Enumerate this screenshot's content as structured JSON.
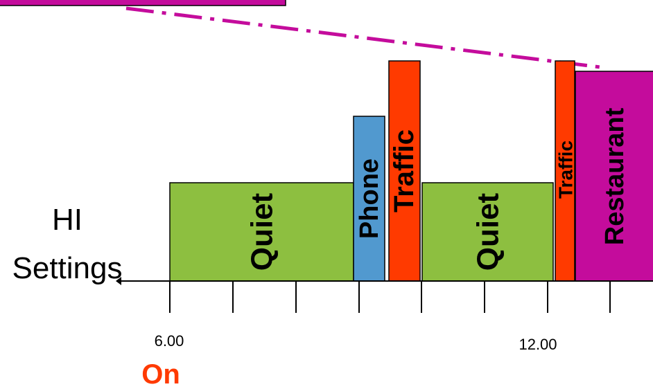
{
  "colors": {
    "quiet": "#8dbf40",
    "phone": "#5199cf",
    "traffic": "#ff3a00",
    "restaurant": "#c40c9c",
    "on_text": "#ff3a00",
    "axis": "#000000"
  },
  "labels": {
    "hi": "HI",
    "settings": "Settings",
    "t6": "6.00",
    "t12": "12.00",
    "on": "On"
  },
  "blocks": [
    {
      "id": "quiet-1",
      "label": "Quiet",
      "type": "quiet"
    },
    {
      "id": "phone",
      "label": "Phone",
      "type": "phone"
    },
    {
      "id": "traffic-1",
      "label": "Traffic",
      "type": "traffic"
    },
    {
      "id": "quiet-2",
      "label": "Quiet",
      "type": "quiet"
    },
    {
      "id": "traffic-2",
      "label": "Traffic",
      "type": "traffic"
    },
    {
      "id": "restaurant",
      "label": "Restaurant",
      "type": "restaurant"
    }
  ]
}
